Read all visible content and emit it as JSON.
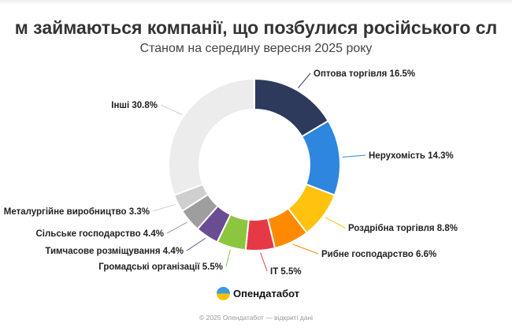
{
  "chart_data": {
    "type": "pie",
    "variant": "donut",
    "title": "м займаються компанії, що позбулися російського сл",
    "subtitle": "Станом на середину вересня 2025 року",
    "start_angle": "12 o'clock, clockwise",
    "slices": [
      {
        "label": "Оптова торгівля",
        "value": 16.5,
        "display": "Оптова торгівля 16.5%",
        "color": "#2d3a5c"
      },
      {
        "label": "Нерухомість",
        "value": 14.3,
        "display": "Нерухомість 14.3%",
        "color": "#2e86de"
      },
      {
        "label": "Роздрібна торгівля",
        "value": 8.8,
        "display": "Роздрібна торгівля 8.8%",
        "color": "#ffc20e"
      },
      {
        "label": "Рибне господарство",
        "value": 6.6,
        "display": "Рибне господарство 6.6%",
        "color": "#ff8a00"
      },
      {
        "label": "IT",
        "value": 5.5,
        "display": "IT 5.5%",
        "color": "#e63946"
      },
      {
        "label": "Громадські організації",
        "value": 5.5,
        "display": "Громадські організації 5.5%",
        "color": "#8cc63f"
      },
      {
        "label": "Тимчасове розміщування",
        "value": 4.4,
        "display": "Тимчасове розміщування 4.4%",
        "color": "#6a4c93"
      },
      {
        "label": "Сільське господарство",
        "value": 4.4,
        "display": "Сільське господарство 4.4%",
        "color": "#9e9e9e"
      },
      {
        "label": "Металургійне виробництво",
        "value": 3.3,
        "display": "Металургійне виробництво 3.3%",
        "color": "#cfcfcf"
      },
      {
        "label": "Інші",
        "value": 30.8,
        "display": "Інші 30.8%",
        "color": "#ececec"
      }
    ]
  },
  "branding": {
    "logo_text": "Опендатабот",
    "footer": "© 2025 Опендатабот — відкриті дані"
  }
}
